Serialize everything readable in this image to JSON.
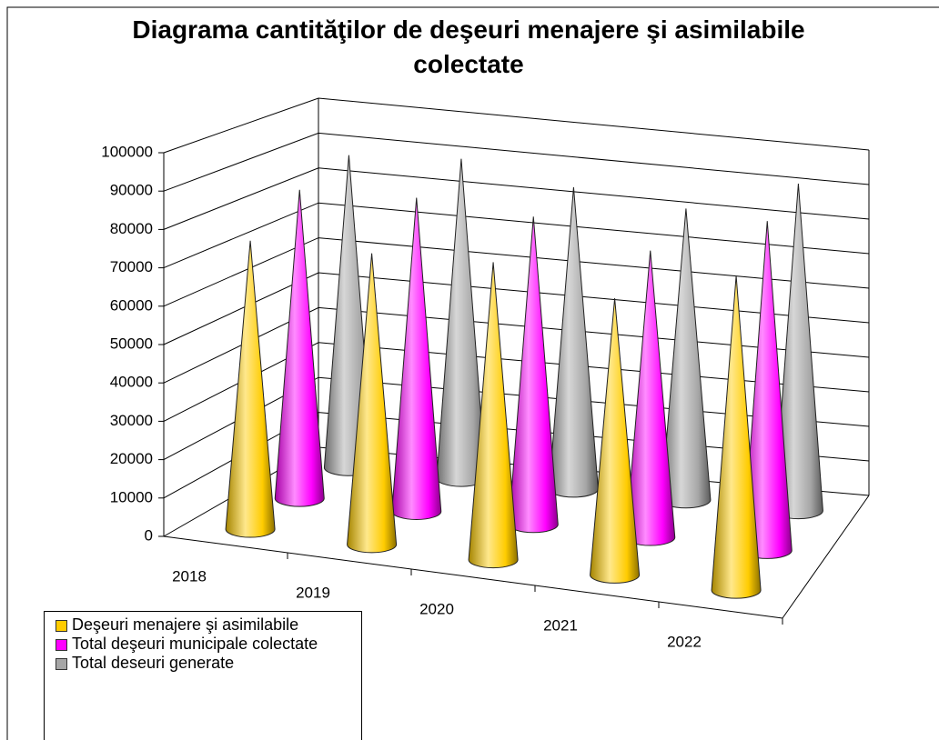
{
  "chart_data": {
    "type": "cone3d",
    "title": "Diagrama cantităţilor de deşeuri menajere şi asimilabile colectate",
    "categories": [
      "2018",
      "2019",
      "2020",
      "2021",
      "2022"
    ],
    "series": [
      {
        "name": "Deşeuri menajere şi asimilabile",
        "color": "#FFCC00",
        "values": [
          76000,
          76000,
          77000,
          71000,
          80000
        ]
      },
      {
        "name": "Total deşeuri municipale colectate",
        "color": "#FF00FF",
        "values": [
          84000,
          85000,
          83000,
          77000,
          88000
        ]
      },
      {
        "name": "Total deseuri generate",
        "color": "#A6A6A6",
        "values": [
          88000,
          90000,
          85000,
          82000,
          92000
        ]
      }
    ],
    "ylim": [
      0,
      100000
    ],
    "yticks": [
      0,
      10000,
      20000,
      30000,
      40000,
      50000,
      60000,
      70000,
      80000,
      90000,
      100000
    ],
    "grid": true,
    "legend": "bottom-left"
  }
}
